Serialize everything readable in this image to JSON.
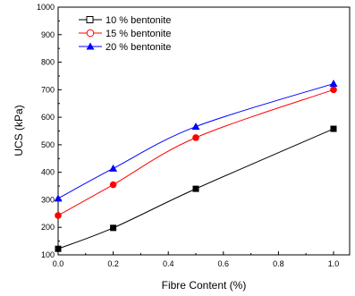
{
  "chart_data": {
    "type": "line",
    "xlabel": "Fibre Content (%)",
    "ylabel": "UCS (kPa)",
    "xlim": [
      0.0,
      1.05
    ],
    "ylim": [
      100,
      1000
    ],
    "x_ticks": [
      "0.0",
      "0.2",
      "0.4",
      "0.6",
      "0.8",
      "1.0"
    ],
    "y_ticks": [
      "100",
      "200",
      "300",
      "400",
      "500",
      "600",
      "700",
      "800",
      "900",
      "1000"
    ],
    "grid": false,
    "legend_position": "top-left",
    "x": [
      0.0,
      0.2,
      0.5,
      1.0
    ],
    "series": [
      {
        "name": "10 % bentonite",
        "values": [
          122,
          198,
          340,
          558
        ],
        "color": "#000000",
        "marker": "square"
      },
      {
        "name": "15 % bentonite",
        "values": [
          243,
          355,
          526,
          700
        ],
        "color": "#ff0000",
        "marker": "circle"
      },
      {
        "name": "20 % bentonite",
        "values": [
          305,
          414,
          566,
          722
        ],
        "color": "#0000ff",
        "marker": "triangle"
      }
    ]
  }
}
